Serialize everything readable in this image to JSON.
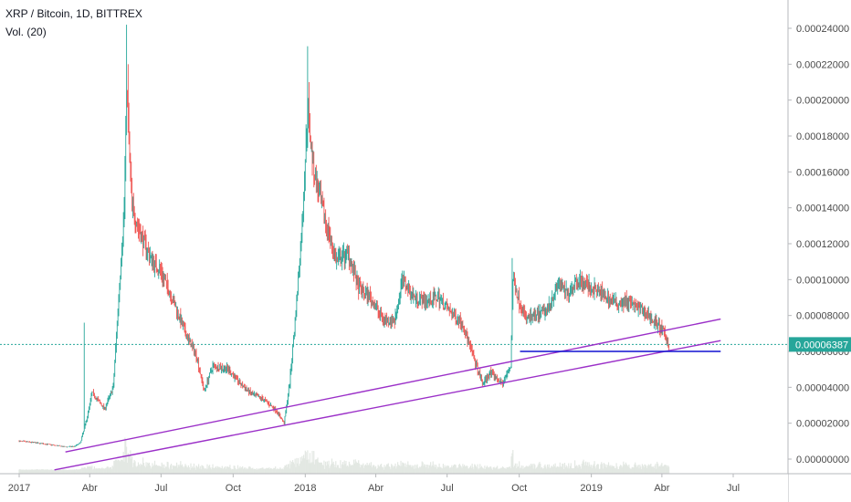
{
  "header": {
    "title": "XRP / Bitcoin, 1D, BITTREX",
    "indicator": "Vol. (20)"
  },
  "colors": {
    "up": "#26a69a",
    "down": "#ef5350",
    "channel": "#9b30c8",
    "support": "#1010d0",
    "last_price": "#26a69a",
    "volume": "#e3e8e3"
  },
  "chart_data": {
    "type": "candlestick",
    "title": "XRP / Bitcoin, 1D, BITTREX",
    "x_ticks": [
      "2017",
      "Abr",
      "Jul",
      "Oct",
      "2018",
      "Abr",
      "Jul",
      "Oct",
      "2019",
      "Abr",
      "Jul"
    ],
    "x_tick_dates": [
      "2017-01-01",
      "2017-04-01",
      "2017-07-01",
      "2017-10-01",
      "2018-01-01",
      "2018-04-01",
      "2018-07-01",
      "2018-10-01",
      "2019-01-01",
      "2019-04-01",
      "2019-07-01"
    ],
    "y_ticks": [
      "0.00000000",
      "0.00002000",
      "0.00004000",
      "0.00006000",
      "0.00008000",
      "0.00010000",
      "0.00012000",
      "0.00014000",
      "0.00016000",
      "0.00018000",
      "0.00020000",
      "0.00022000",
      "0.00024000"
    ],
    "y_tick_values": [
      0,
      2e-05,
      4e-05,
      6e-05,
      8e-05,
      0.0001,
      0.00012,
      0.00014,
      0.00016,
      0.00018,
      0.0002,
      0.00022,
      0.00024
    ],
    "ylim": [
      0,
      0.00025
    ],
    "last_price": "0.00006387",
    "last_price_value": 6.387e-05,
    "price_path": [
      [
        "2017-01-01",
        1e-05
      ],
      [
        "2017-01-20",
        9.2e-06
      ],
      [
        "2017-02-10",
        8e-06
      ],
      [
        "2017-02-28",
        6.8e-06
      ],
      [
        "2017-03-12",
        7e-06
      ],
      [
        "2017-03-20",
        9e-06
      ],
      [
        "2017-03-28",
        2.2e-05
      ],
      [
        "2017-04-04",
        3.7e-05
      ],
      [
        "2017-04-20",
        2.8e-05
      ],
      [
        "2017-05-01",
        4e-05
      ],
      [
        "2017-05-08",
        9e-05
      ],
      [
        "2017-05-15",
        0.00014
      ],
      [
        "2017-05-18",
        0.000205
      ],
      [
        "2017-05-25",
        0.00014
      ],
      [
        "2017-06-05",
        0.000125
      ],
      [
        "2017-06-20",
        0.00011
      ],
      [
        "2017-06-30",
        0.000105
      ],
      [
        "2017-07-15",
        9e-05
      ],
      [
        "2017-08-01",
        7e-05
      ],
      [
        "2017-08-15",
        5.8e-05
      ],
      [
        "2017-08-25",
        3.8e-05
      ],
      [
        "2017-09-05",
        5.2e-05
      ],
      [
        "2017-09-25",
        5e-05
      ],
      [
        "2017-10-10",
        4.2e-05
      ],
      [
        "2017-10-25",
        3.6e-05
      ],
      [
        "2017-11-10",
        3.3e-05
      ],
      [
        "2017-11-25",
        2.7e-05
      ],
      [
        "2017-12-05",
        2e-05
      ],
      [
        "2017-12-12",
        4.2e-05
      ],
      [
        "2017-12-20",
        8.2e-05
      ],
      [
        "2017-12-28",
        0.00013
      ],
      [
        "2018-01-04",
        0.000195
      ],
      [
        "2018-01-12",
        0.00016
      ],
      [
        "2018-01-25",
        0.000135
      ],
      [
        "2018-02-10",
        0.00011
      ],
      [
        "2018-02-25",
        0.000115
      ],
      [
        "2018-03-10",
        9.5e-05
      ],
      [
        "2018-03-25",
        9e-05
      ],
      [
        "2018-04-10",
        7.8e-05
      ],
      [
        "2018-04-25",
        7.7e-05
      ],
      [
        "2018-05-05",
        0.0001
      ],
      [
        "2018-05-20",
        9e-05
      ],
      [
        "2018-06-05",
        8.8e-05
      ],
      [
        "2018-06-20",
        9e-05
      ],
      [
        "2018-07-05",
        8.2e-05
      ],
      [
        "2018-07-20",
        7.6e-05
      ],
      [
        "2018-08-01",
        6e-05
      ],
      [
        "2018-08-15",
        4.2e-05
      ],
      [
        "2018-08-25",
        4.8e-05
      ],
      [
        "2018-09-10",
        4.2e-05
      ],
      [
        "2018-09-20",
        5.2e-05
      ],
      [
        "2018-09-23",
        0.0001
      ],
      [
        "2018-10-01",
        8.8e-05
      ],
      [
        "2018-10-10",
        7.8e-05
      ],
      [
        "2018-10-25",
        8e-05
      ],
      [
        "2018-11-05",
        8.3e-05
      ],
      [
        "2018-11-20",
        9.8e-05
      ],
      [
        "2018-12-01",
        9.2e-05
      ],
      [
        "2018-12-15",
        0.0001
      ],
      [
        "2019-01-01",
        9.5e-05
      ],
      [
        "2019-01-15",
        9.2e-05
      ],
      [
        "2019-02-01",
        8.7e-05
      ],
      [
        "2019-02-15",
        8.8e-05
      ],
      [
        "2019-03-01",
        8.4e-05
      ],
      [
        "2019-03-15",
        8e-05
      ],
      [
        "2019-04-01",
        7.2e-05
      ],
      [
        "2019-04-10",
        6.387e-05
      ]
    ],
    "spikes": [
      [
        "2017-03-25",
        7.6e-05
      ],
      [
        "2017-05-18",
        0.000242
      ],
      [
        "2017-05-20",
        0.00022
      ],
      [
        "2018-01-04",
        0.00023
      ],
      [
        "2018-01-06",
        0.00021
      ],
      [
        "2018-05-05",
        0.000105
      ],
      [
        "2018-09-22",
        0.000112
      ],
      [
        "2019-01-25",
        7e-05
      ]
    ],
    "trendlines": [
      {
        "name": "channel-upper",
        "color": "#9b30c8",
        "start": [
          "2017-03-01",
          4e-06
        ],
        "end": [
          "2019-06-15",
          7.8e-05
        ]
      },
      {
        "name": "channel-lower",
        "color": "#9b30c8",
        "start": [
          "2017-02-15",
          -6e-06
        ],
        "end": [
          "2019-06-15",
          6.6e-05
        ]
      },
      {
        "name": "support",
        "color": "#1010d0",
        "start": [
          "2018-10-02",
          6e-05
        ],
        "end": [
          "2019-06-15",
          6e-05
        ]
      }
    ],
    "grid": false
  }
}
